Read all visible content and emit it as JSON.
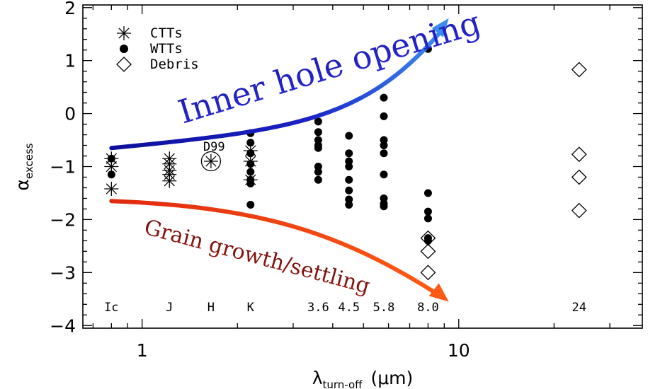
{
  "chart_data": {
    "type": "scatter",
    "title": "",
    "xlabel": "λturn-off (μm)",
    "xlabel_parts": {
      "base": "λ",
      "sub": "turn-off",
      "unit": "(μm)"
    },
    "ylabel": "αexcess",
    "ylabel_parts": {
      "base": "α",
      "sub": "excess"
    },
    "xscale": "log",
    "xlim": [
      0.65,
      38
    ],
    "ylim": [
      -4.05,
      2.05
    ],
    "xticks": [
      1,
      10
    ],
    "xtick_labels": [
      "1",
      "10"
    ],
    "yticks": [
      2,
      1,
      0,
      -1,
      -2,
      -3,
      -4
    ],
    "ytick_labels": [
      "2",
      "1",
      "0",
      "−1",
      "−2",
      "−3",
      "−4"
    ],
    "grid": false,
    "legend": {
      "position": "top-left",
      "entries": [
        {
          "label": "CTTs",
          "marker": "asterisk"
        },
        {
          "label": "WTTs",
          "marker": "filled-circle"
        },
        {
          "label": "Debris",
          "marker": "open-diamond"
        }
      ]
    },
    "band_labels": [
      {
        "x": 0.8,
        "label": "Ic"
      },
      {
        "x": 1.22,
        "label": "J"
      },
      {
        "x": 1.65,
        "label": "H"
      },
      {
        "x": 2.2,
        "label": "K"
      },
      {
        "x": 3.6,
        "label": "3.6"
      },
      {
        "x": 4.5,
        "label": "4.5"
      },
      {
        "x": 5.8,
        "label": "5.8"
      },
      {
        "x": 8.0,
        "label": "8.0"
      },
      {
        "x": 24,
        "label": "24"
      }
    ],
    "series": [
      {
        "name": "CTTs",
        "marker": "asterisk",
        "x": [
          0.8,
          0.8,
          0.8,
          1.22,
          1.22,
          1.22,
          1.22,
          1.22,
          2.2,
          2.2,
          2.2
        ],
        "y": [
          -0.85,
          -1.0,
          -1.42,
          -0.85,
          -0.95,
          -1.07,
          -1.15,
          -1.27,
          -0.7,
          -0.9,
          -1.25
        ]
      },
      {
        "name": "WTTs",
        "marker": "filled-circle",
        "x": [
          0.8,
          0.8,
          2.2,
          2.2,
          2.2,
          2.2,
          2.2,
          2.2,
          2.2,
          2.2,
          3.6,
          3.6,
          3.6,
          3.6,
          3.6,
          3.6,
          3.6,
          3.6,
          4.5,
          4.5,
          4.5,
          4.5,
          4.5,
          4.5,
          4.5,
          4.5,
          5.8,
          5.8,
          5.8,
          5.8,
          5.8,
          5.8,
          5.8,
          5.8,
          5.8,
          8.0,
          8.0,
          8.0,
          8.0,
          8.0,
          8.0
        ],
        "y": [
          -0.85,
          -1.15,
          -0.37,
          -0.55,
          -0.75,
          -0.95,
          -1.1,
          -1.25,
          -1.32,
          -1.72,
          -0.15,
          -0.35,
          -0.5,
          -0.6,
          -0.65,
          -1.0,
          -1.1,
          -1.25,
          -0.42,
          -0.75,
          -0.9,
          -1.0,
          -1.25,
          -1.45,
          -1.62,
          -1.72,
          0.3,
          -0.05,
          -0.5,
          -0.6,
          -0.75,
          -1.15,
          -1.6,
          -1.7,
          -1.75,
          1.22,
          -1.5,
          -1.85,
          -1.98,
          -2.4,
          -2.35
        ]
      },
      {
        "name": "Debris",
        "marker": "open-diamond",
        "x": [
          8.0,
          8.0,
          8.0,
          24,
          24,
          24,
          24
        ],
        "y": [
          -2.35,
          -2.6,
          -3.0,
          0.83,
          -0.77,
          -1.2,
          -1.83
        ]
      },
      {
        "name": "D99",
        "marker": "circled-asterisk",
        "x": [
          1.65
        ],
        "y": [
          -0.9
        ]
      }
    ],
    "point_labels": [
      {
        "text": "D99",
        "x": 1.65,
        "y": -0.62
      }
    ],
    "annotations": [
      {
        "text": "Inner hole opening",
        "color": "#1a22c8",
        "arrow": {
          "from": [
            0.8,
            -0.65
          ],
          "to": [
            9.3,
            1.8
          ]
        }
      },
      {
        "text": "Grain growth/settling",
        "color": "#ee4411",
        "arrow": {
          "from": [
            0.8,
            -1.65
          ],
          "to": [
            9.3,
            -3.55
          ]
        }
      }
    ]
  }
}
